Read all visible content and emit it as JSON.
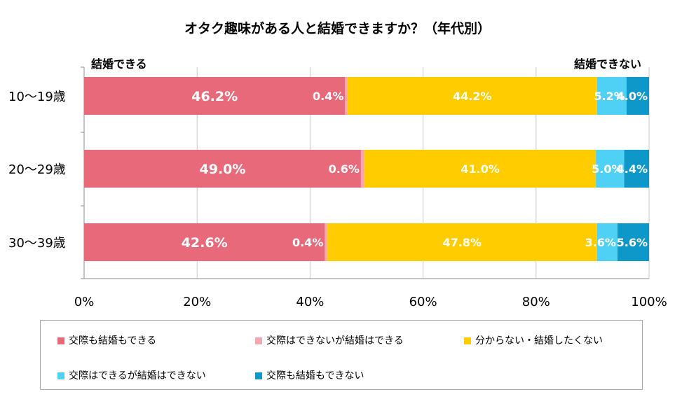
{
  "chart_data": {
    "type": "bar",
    "orientation": "horizontal",
    "stacked": true,
    "title": "オタク趣味がある人と結婚できますか？（年代別）",
    "corner_labels": {
      "left": "結婚できる",
      "right": "結婚できない"
    },
    "categories": [
      "10～19歳",
      "20～29歳",
      "30～39歳"
    ],
    "xlim": [
      0,
      100
    ],
    "xticks": [
      "0%",
      "20%",
      "40%",
      "60%",
      "80%",
      "100%"
    ],
    "grid": true,
    "legend_position": "bottom",
    "series": [
      {
        "name": "交際も結婚もできる",
        "color": "#e86a7a",
        "values": [
          46.2,
          49.0,
          42.6
        ],
        "labels": [
          "46.2%",
          "49.0%",
          "42.6%"
        ]
      },
      {
        "name": "交際はできないが結婚はできる",
        "color": "#f4a6b4",
        "values": [
          0.4,
          0.6,
          0.4
        ],
        "labels": [
          "0.4%",
          "0.6%",
          "0.4%"
        ]
      },
      {
        "name": "分からない・結婚したくない",
        "color": "#ffcc00",
        "values": [
          44.2,
          41.0,
          47.8
        ],
        "labels": [
          "44.2%",
          "41.0%",
          "47.8%"
        ]
      },
      {
        "name": "交際はできるが結婚はできない",
        "color": "#4fd0f5",
        "values": [
          5.2,
          5.0,
          3.6
        ],
        "labels": [
          "5.2%",
          "5.0%",
          "3.6%"
        ]
      },
      {
        "name": "交際も結婚もできない",
        "color": "#0e97c9",
        "values": [
          4.0,
          4.4,
          5.6
        ],
        "labels": [
          "4.0%",
          "4.4%",
          "5.6%"
        ]
      }
    ]
  }
}
